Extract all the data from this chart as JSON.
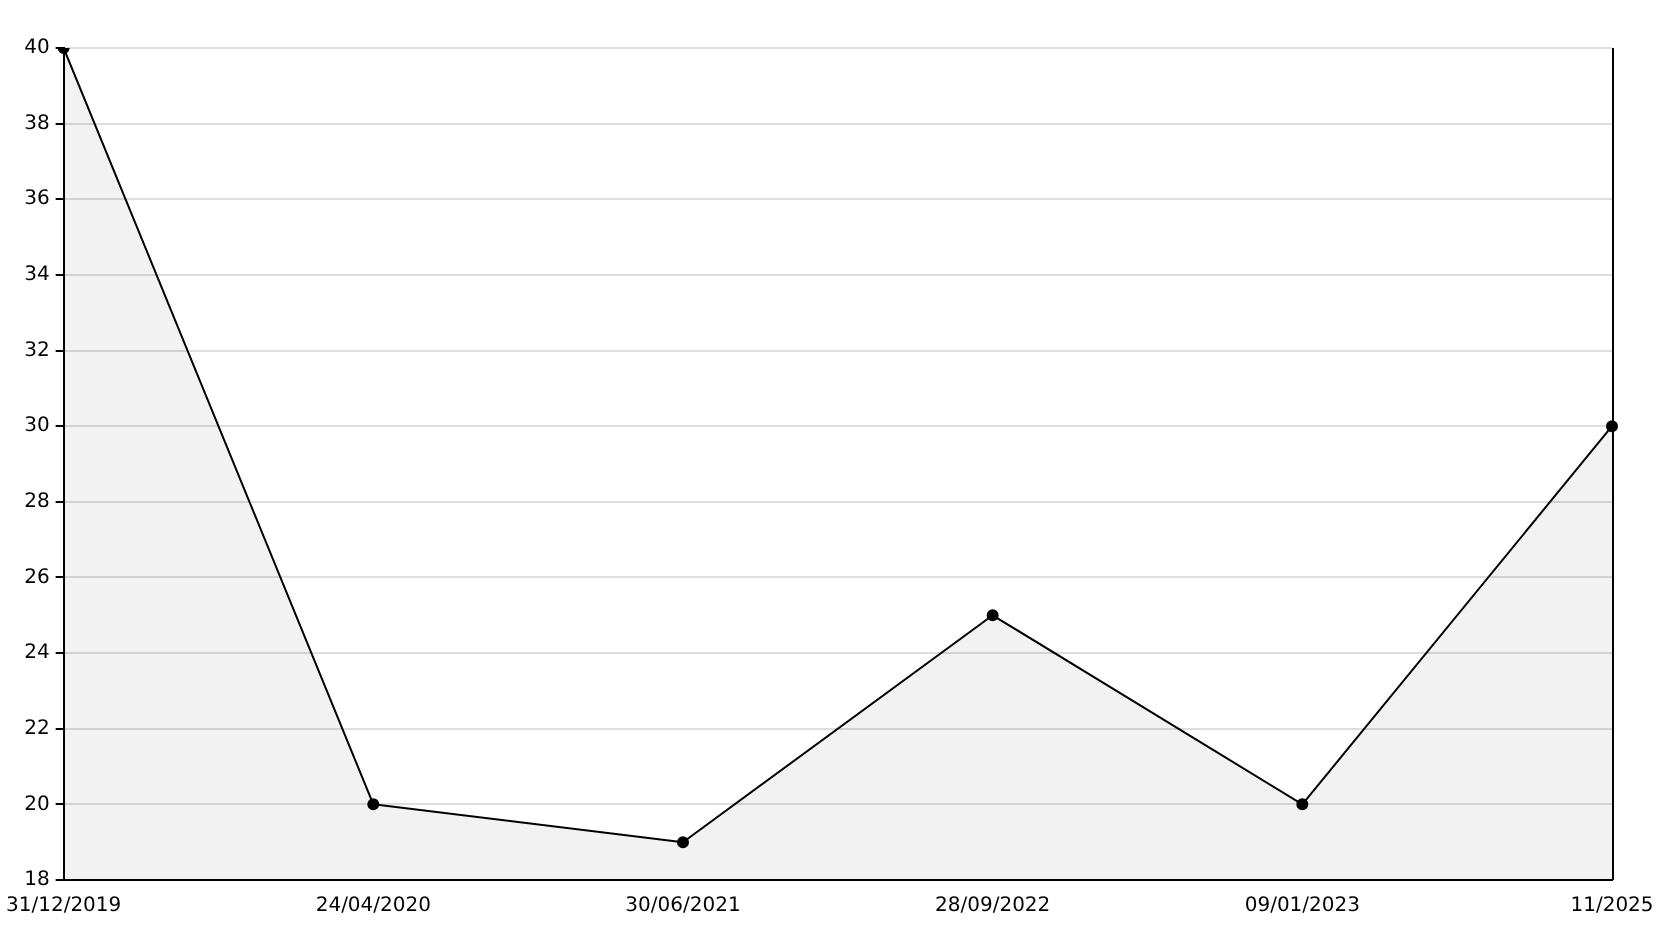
{
  "chart_data": {
    "type": "area",
    "categories": [
      "31/12/2019",
      "24/04/2020",
      "30/06/2021",
      "28/09/2022",
      "09/01/2023",
      "11/2025"
    ],
    "series": [
      {
        "color": "#000000",
        "values": [
          40,
          20,
          19,
          25,
          20,
          30
        ]
      }
    ],
    "ylim": [
      18,
      40
    ],
    "yticks": [
      18,
      20,
      22,
      24,
      26,
      28,
      30,
      32,
      34,
      36,
      38,
      40
    ],
    "grid": "y",
    "marker": "circle",
    "line_style": "solid"
  }
}
